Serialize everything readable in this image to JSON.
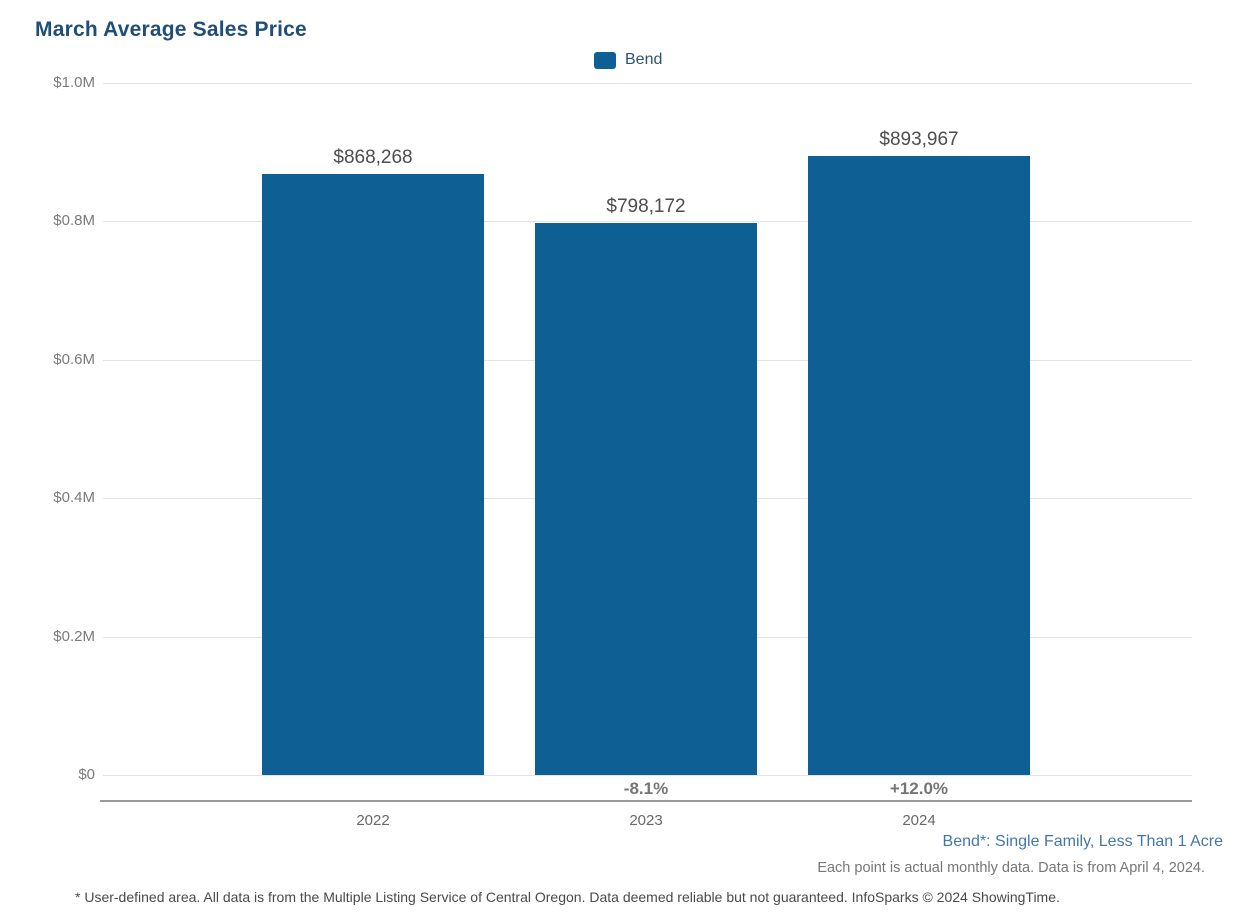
{
  "header": {
    "title": "March Average Sales Price"
  },
  "legend": {
    "label": "Bend"
  },
  "chart_data": {
    "type": "bar",
    "title": "March Average Sales Price",
    "categories": [
      "2022",
      "2023",
      "2024"
    ],
    "series": [
      {
        "name": "Bend",
        "values": [
          868268,
          798172,
          893967
        ]
      }
    ],
    "value_labels": [
      "$868,268",
      "$798,172",
      "$893,967"
    ],
    "pct_change_labels": [
      "",
      "-8.1%",
      "+12.0%"
    ],
    "ytick_labels": [
      "$1.0M",
      "$0.8M",
      "$0.6M",
      "$0.4M",
      "$0.2M",
      "$0"
    ],
    "ylim": [
      0,
      1000000
    ],
    "grid": true,
    "legend_position": "top-center",
    "bar_color": "#0E5F93"
  },
  "footnotes": {
    "series_definition": "Bend*: Single Family, Less Than 1 Acre",
    "data_note": "Each point is actual monthly data. Data is from April 4, 2024.",
    "disclaimer": "* User-defined area. All data is from the Multiple Listing Service of Central Oregon. Data deemed reliable but not guaranteed. InfoSparks © 2024 ShowingTime."
  },
  "colors": {
    "bar": "#0E5F93",
    "title": "#1F4E79",
    "subtitle_link": "#4477A9"
  }
}
